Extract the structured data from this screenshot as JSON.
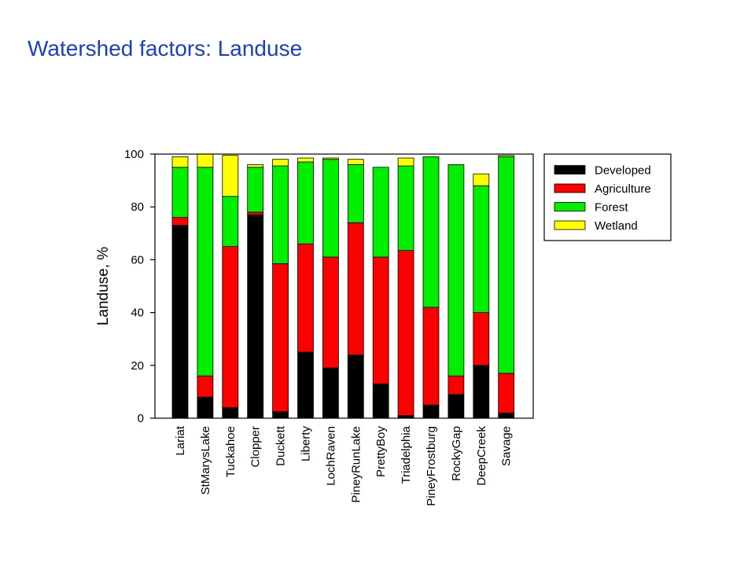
{
  "page": {
    "title": "Watershed factors: Landuse"
  },
  "chart_data": {
    "type": "bar",
    "stacked": true,
    "title": "",
    "xlabel": "",
    "ylabel": "Landuse, %",
    "ylim": [
      0,
      100
    ],
    "yticks": [
      "0",
      "20",
      "40",
      "60",
      "80",
      "100"
    ],
    "grid": false,
    "legend_position": "top-right, outside plot",
    "categories": [
      "Lariat",
      "StMarysLake",
      "Tuckahoe",
      "Clopper",
      "Duckett",
      "Liberty",
      "LochRaven",
      "PineyRunLake",
      "PrettyBoy",
      "Triadelphia",
      "PineyFrostburg",
      "RockyGap",
      "DeepCreek",
      "Savage"
    ],
    "series": [
      {
        "name": "Developed",
        "color": "#000000",
        "values": [
          73,
          8,
          4,
          77,
          2.5,
          25,
          19,
          24,
          13,
          1,
          5,
          9,
          20,
          2
        ]
      },
      {
        "name": "Agriculture",
        "color": "#ff0000",
        "values": [
          3,
          8,
          61,
          1,
          56,
          41,
          42,
          50,
          48,
          62.5,
          37,
          7,
          20,
          15
        ]
      },
      {
        "name": "Forest",
        "color": "#00ee00",
        "values": [
          19,
          79,
          19,
          17,
          37,
          31,
          37,
          22,
          34,
          32,
          57,
          80,
          48,
          82
        ]
      },
      {
        "name": "Wetland",
        "color": "#ffff00",
        "values": [
          4,
          5,
          15.5,
          1,
          2.5,
          1.5,
          0.5,
          2,
          0,
          3,
          0,
          0,
          4.5,
          0.5
        ]
      }
    ]
  }
}
